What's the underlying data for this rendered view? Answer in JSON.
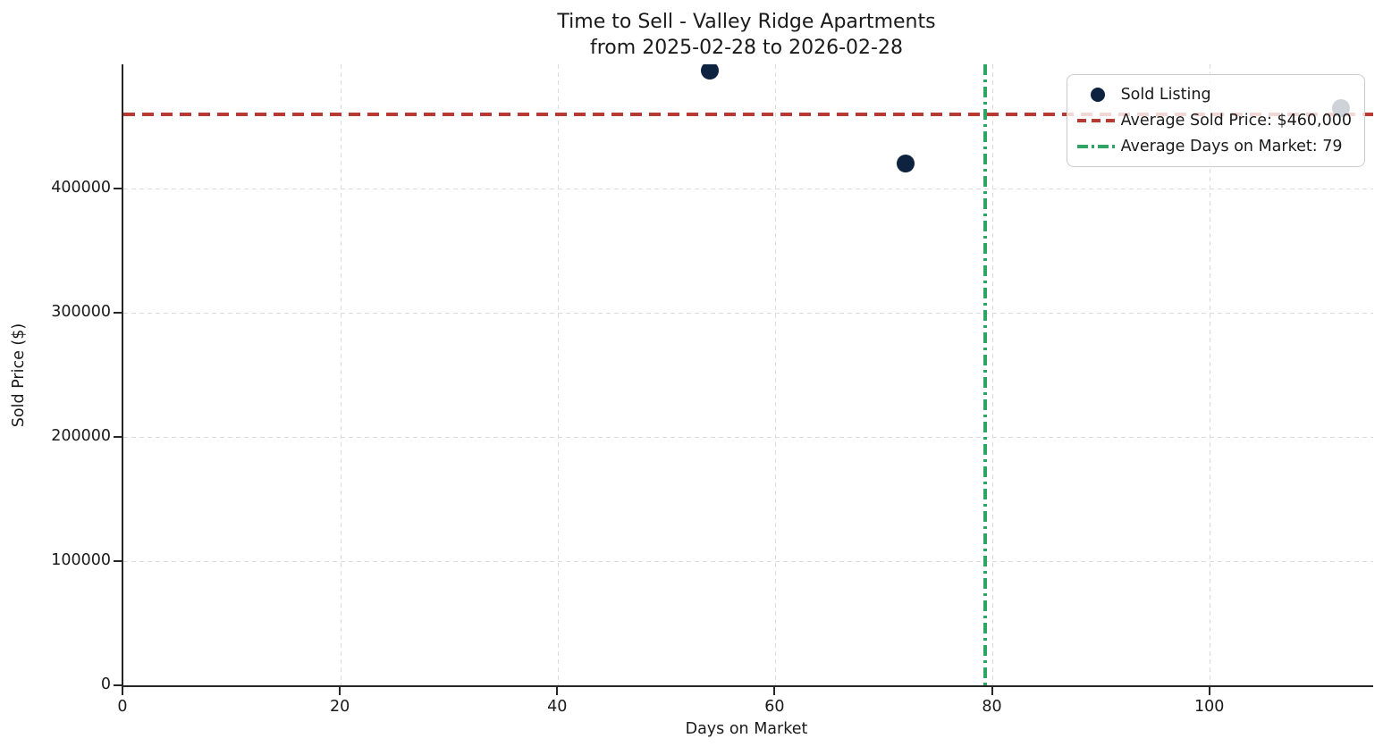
{
  "chart_data": {
    "type": "scatter",
    "title": "Time to Sell - Valley Ridge Apartments",
    "subtitle": "from 2025-02-28 to 2026-02-28",
    "xlabel": "Days on Market",
    "ylabel": "Sold Price ($)",
    "xlim": [
      0,
      115
    ],
    "ylim": [
      0,
      500000
    ],
    "xticks": [
      0,
      20,
      40,
      60,
      80,
      100
    ],
    "yticks": [
      0,
      100000,
      200000,
      300000,
      400000
    ],
    "grid": true,
    "grid_style": "dashed",
    "legend_position": "upper right",
    "series": [
      {
        "name": "Sold Listing",
        "marker": "circle",
        "color": "#0e2340",
        "points": [
          {
            "x": 54,
            "y": 495000
          },
          {
            "x": 72,
            "y": 420000
          },
          {
            "x": 112,
            "y": 465000
          }
        ]
      }
    ],
    "reference_lines": [
      {
        "name": "average-sold-price",
        "orientation": "horizontal",
        "value": 460000,
        "style": "dashed",
        "color": "#b73b32",
        "label": "Average Sold Price: $460,000"
      },
      {
        "name": "average-days-on-market",
        "orientation": "vertical",
        "value": 79.33,
        "style": "dashdot",
        "color": "#2ea563",
        "label": "Average Days on Market: 79"
      }
    ],
    "legend": [
      {
        "marker": "dot",
        "label": "Sold Listing"
      },
      {
        "marker": "dashed-line",
        "label": "Average Sold Price: $460,000"
      },
      {
        "marker": "dashdot-line",
        "label": "Average Days on Market: 79"
      }
    ],
    "colors": {
      "point": "#0e2340",
      "avg_price_line": "#b73b32",
      "avg_days_line": "#2ea563",
      "spine": "#262626",
      "grid": "#dcdcdc",
      "text": "#1a1a1a"
    }
  }
}
